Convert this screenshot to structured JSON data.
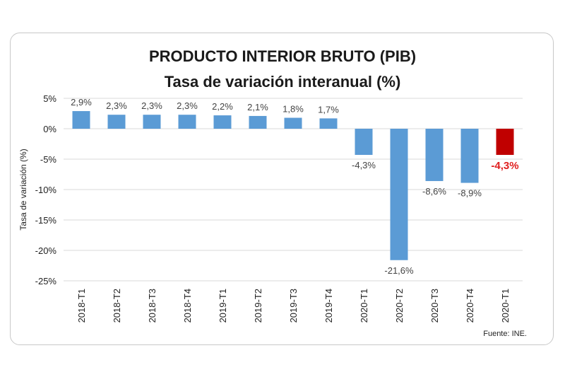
{
  "chart_data": {
    "type": "bar",
    "title": "PRODUCTO INTERIOR BRUTO (PIB)",
    "subtitle": "Tasa de variación interanual (%)",
    "ylabel": "Tasa de variación (%)",
    "xlabel": "",
    "source": "Fuente: INE.",
    "categories": [
      "2018-T1",
      "2018-T2",
      "2018-T3",
      "2018-T4",
      "2019-T1",
      "2019-T2",
      "2019-T3",
      "2019-T4",
      "2020-T1",
      "2020-T2",
      "2020-T3",
      "2020-T4",
      "2020-T1"
    ],
    "values": [
      2.9,
      2.3,
      2.3,
      2.3,
      2.2,
      2.1,
      1.8,
      1.7,
      -4.3,
      -21.6,
      -8.6,
      -8.9,
      -4.3
    ],
    "data_labels": [
      "2,9%",
      "2,3%",
      "2,3%",
      "2,3%",
      "2,2%",
      "2,1%",
      "1,8%",
      "1,7%",
      "-4,3%",
      "-21,6%",
      "-8,6%",
      "-8,9%",
      "-4,3%"
    ],
    "highlight_index": 12,
    "ylim": [
      -25,
      5
    ],
    "yticks": [
      5,
      0,
      -5,
      -10,
      -15,
      -20,
      -25
    ],
    "ytick_labels": [
      "5%",
      "0%",
      "-5%",
      "-10%",
      "-15%",
      "-20%",
      "-25%"
    ],
    "grid": true,
    "legend": "none",
    "colors": {
      "bar": "#5b9bd5",
      "highlight": "#c00000",
      "highlight_label": "#e02020",
      "grid": "#d9d9d9"
    }
  }
}
